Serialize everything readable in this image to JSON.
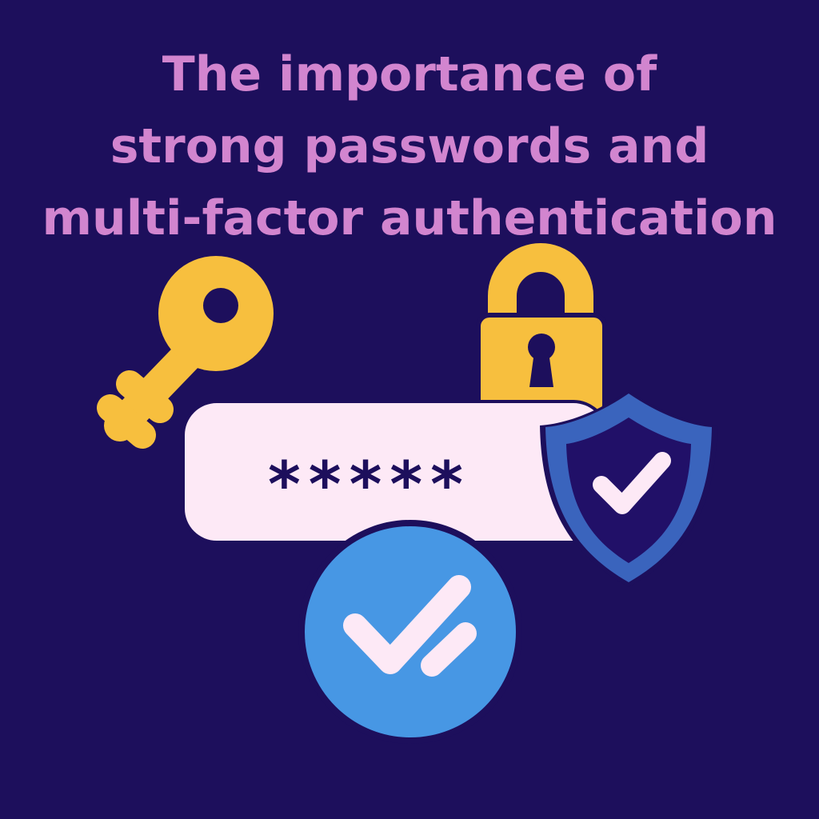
{
  "title_lines": [
    "The importance of",
    "strong passwords and",
    "multi-factor authentication"
  ],
  "password_field": {
    "masked_value": "*****"
  },
  "icons": {
    "key": "key-icon",
    "padlock": "padlock-icon",
    "shield": "shield-check-icon",
    "circle_check": "double-check-circle-icon"
  },
  "colors": {
    "background": "#1d0f5c",
    "title": "#d285cf",
    "key": "#f7bf3e",
    "padlock": "#f7bf3e",
    "field": "#fde9f6",
    "shield_outer": "#3a64bd",
    "shield_inner": "#211068",
    "circle": "#4797e4",
    "check": "#fde9f6"
  }
}
